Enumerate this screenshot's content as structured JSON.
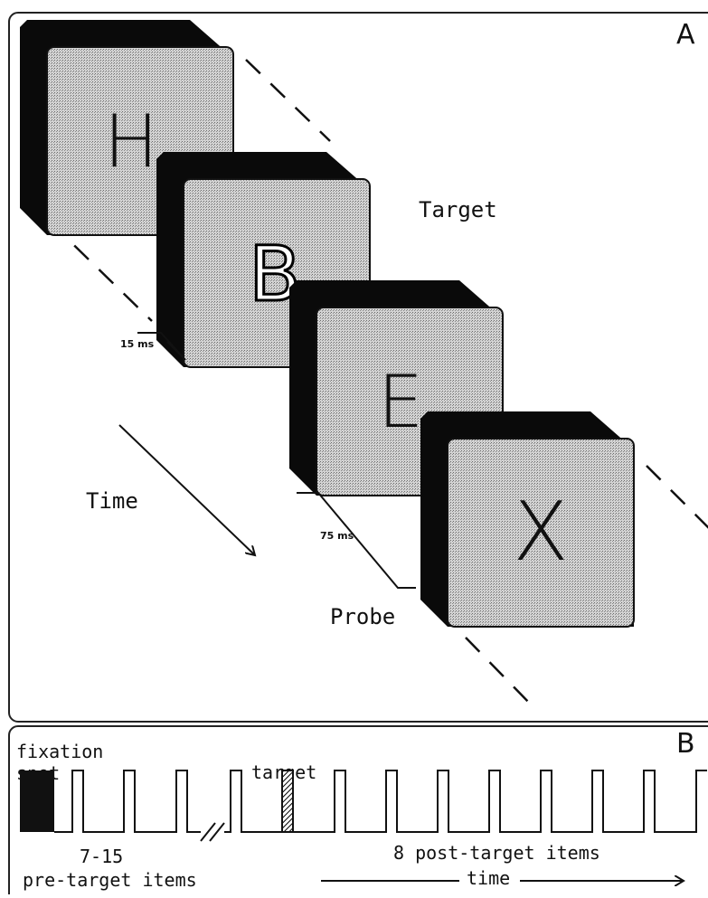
{
  "panel_a": {
    "label": "A",
    "cards": [
      "H",
      "B",
      "E",
      "X"
    ],
    "target_label": "Target",
    "probe_label": "Probe",
    "time_label": "Time",
    "durations": [
      "15 ms",
      "75 ms"
    ]
  },
  "panel_b": {
    "label": "B",
    "fixation": [
      "fixation",
      "spot"
    ],
    "target": "target",
    "pre_count": "7-15",
    "pre_label": "pre-target items",
    "post_label": "8 post-target items",
    "time_label": "time"
  }
}
